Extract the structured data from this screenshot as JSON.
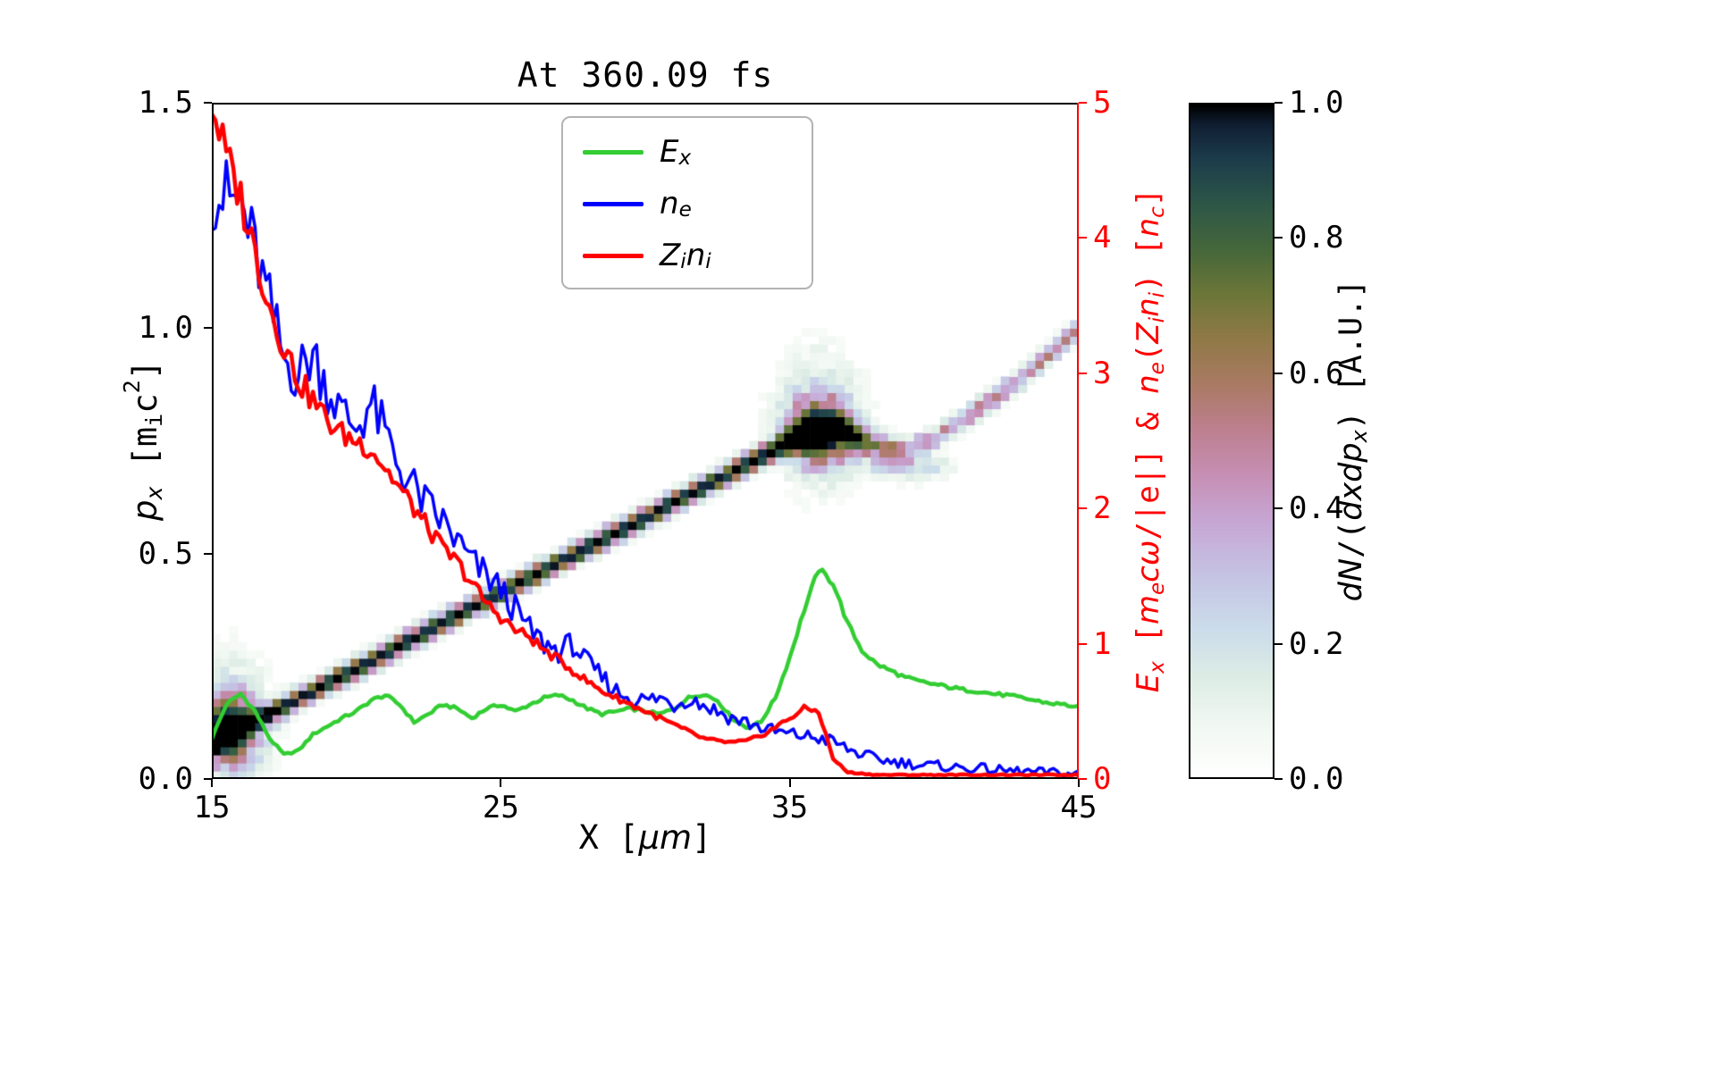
{
  "figure": {
    "title": "At 360.09 fs",
    "background": "#ffffff",
    "axes_color": "#000000",
    "right_axis_color": "#ff0000"
  },
  "labels": {
    "xlabel": [
      {
        "t": "X [",
        "s": ""
      },
      {
        "t": "μm",
        "s": "it"
      },
      {
        "t": "]",
        "s": ""
      }
    ],
    "ylabel_left": [
      {
        "t": "p",
        "s": "it"
      },
      {
        "t": "x",
        "s": "itsub"
      },
      {
        "t": " [m",
        "s": ""
      },
      {
        "t": "i",
        "s": "sub"
      },
      {
        "t": "c",
        "s": ""
      },
      {
        "t": "2",
        "s": "sup"
      },
      {
        "t": "]",
        "s": ""
      }
    ],
    "ylabel_right": [
      {
        "t": "E",
        "s": "it"
      },
      {
        "t": "x",
        "s": "itsub"
      },
      {
        "t": " [",
        "s": ""
      },
      {
        "t": "m",
        "s": "it"
      },
      {
        "t": "e",
        "s": "itsub"
      },
      {
        "t": "c",
        "s": "it"
      },
      {
        "t": "ω",
        "s": "it"
      },
      {
        "t": "/|e|] & ",
        "s": ""
      },
      {
        "t": "n",
        "s": "it"
      },
      {
        "t": "e",
        "s": "itsub"
      },
      {
        "t": "(",
        "s": ""
      },
      {
        "t": "Z",
        "s": "it"
      },
      {
        "t": "i",
        "s": "itsub"
      },
      {
        "t": "n",
        "s": "it"
      },
      {
        "t": "i",
        "s": "itsub"
      },
      {
        "t": ") [",
        "s": ""
      },
      {
        "t": "n",
        "s": "it"
      },
      {
        "t": "c",
        "s": "itsub"
      },
      {
        "t": "]",
        "s": ""
      }
    ],
    "colorbar_label": [
      {
        "t": "d",
        "s": "it"
      },
      {
        "t": "N",
        "s": "it"
      },
      {
        "t": "/(",
        "s": ""
      },
      {
        "t": "d",
        "s": "it"
      },
      {
        "t": "x",
        "s": "it"
      },
      {
        "t": "d",
        "s": "it"
      },
      {
        "t": "p",
        "s": "it"
      },
      {
        "t": "x",
        "s": "itsub"
      },
      {
        "t": ") [A.U.]",
        "s": ""
      }
    ]
  },
  "legend": {
    "entries": [
      {
        "label": [
          {
            "t": "E",
            "s": "it"
          },
          {
            "t": "x",
            "s": "itsub"
          }
        ]
      },
      {
        "label": [
          {
            "t": "n",
            "s": "it"
          },
          {
            "t": "e",
            "s": "itsub"
          }
        ]
      },
      {
        "label": [
          {
            "t": "Z",
            "s": "it"
          },
          {
            "t": "i",
            "s": "itsub"
          },
          {
            "t": "n",
            "s": "it"
          },
          {
            "t": "i",
            "s": "itsub"
          }
        ]
      }
    ]
  },
  "axes": {
    "x_ticks": {
      "values": [
        15,
        25,
        35,
        45
      ],
      "labels": [
        "15",
        "25",
        "35",
        "45"
      ],
      "range": [
        15,
        45
      ]
    },
    "y_left_ticks": {
      "values": [
        0,
        0.5,
        1,
        1.5
      ],
      "labels": [
        "0.0",
        "0.5",
        "1.0",
        "1.5"
      ],
      "range": [
        0,
        1.5
      ]
    },
    "y_right_ticks": {
      "values": [
        0,
        1,
        2,
        3,
        4,
        5
      ],
      "labels": [
        "0",
        "1",
        "2",
        "3",
        "4",
        "5"
      ],
      "range": [
        0,
        5
      ]
    }
  },
  "colorbar": {
    "ticks": {
      "values": [
        0,
        0.2,
        0.4,
        0.6,
        0.8,
        1
      ],
      "labels": [
        "0.0",
        "0.2",
        "0.4",
        "0.6",
        "0.8",
        "1.0"
      ]
    },
    "stops": [
      [
        0,
        "#ffffff"
      ],
      [
        0.08,
        "#f0f7f1"
      ],
      [
        0.15,
        "#dcece5"
      ],
      [
        0.22,
        "#cbdcea"
      ],
      [
        0.3,
        "#c5c3e3"
      ],
      [
        0.38,
        "#c6a6d4"
      ],
      [
        0.45,
        "#c68fb4"
      ],
      [
        0.52,
        "#bc7f8e"
      ],
      [
        0.58,
        "#ab7a66"
      ],
      [
        0.65,
        "#917947"
      ],
      [
        0.72,
        "#6b7638"
      ],
      [
        0.78,
        "#48683a"
      ],
      [
        0.85,
        "#2e5747"
      ],
      [
        0.92,
        "#1c3c4b"
      ],
      [
        0.97,
        "#101f33"
      ],
      [
        1,
        "#000000"
      ]
    ]
  },
  "chart_data": {
    "type": "line+heatmap",
    "title": "At 360.09 fs",
    "xlabel": "X [μm]",
    "ylabel_left": "p_x [m_i c^2]",
    "ylabel_right": "E_x [m_e c ω/|e|] & n_e(Z_i n_i) [n_c]",
    "x_range": [
      15,
      45
    ],
    "y_left_range": [
      0,
      1.5
    ],
    "y_right_range": [
      0,
      5
    ],
    "grid": false,
    "legend_position": "upper center",
    "series": [
      {
        "name": "E_x",
        "axis": "right",
        "color": "#32cd32",
        "x_start": 15,
        "x_step": 0.5,
        "noise_amp": 0.06,
        "noise_floor": 0.1,
        "line_width": 4.5,
        "values": [
          0.3,
          0.55,
          0.63,
          0.5,
          0.3,
          0.18,
          0.21,
          0.33,
          0.39,
          0.45,
          0.5,
          0.58,
          0.62,
          0.55,
          0.42,
          0.48,
          0.55,
          0.52,
          0.45,
          0.52,
          0.55,
          0.5,
          0.55,
          0.6,
          0.62,
          0.58,
          0.52,
          0.48,
          0.5,
          0.52,
          0.5,
          0.48,
          0.52,
          0.6,
          0.63,
          0.58,
          0.45,
          0.38,
          0.42,
          0.6,
          0.9,
          1.25,
          1.55,
          1.45,
          1.15,
          0.95,
          0.85,
          0.8,
          0.75,
          0.72,
          0.7,
          0.68,
          0.66,
          0.65,
          0.63,
          0.62,
          0.6,
          0.58,
          0.56,
          0.55,
          0.53
        ]
      },
      {
        "name": "n_e",
        "axis": "right",
        "color": "#0000ff",
        "x_start": 15,
        "x_step": 0.5,
        "noise_amp": 0.32,
        "noise_floor": 0.1,
        "line_width": 3.5,
        "values": [
          4.35,
          4.3,
          4.25,
          3.9,
          3.5,
          3.1,
          3.0,
          3.15,
          2.9,
          2.7,
          2.6,
          2.78,
          2.55,
          2.3,
          2.15,
          2.0,
          1.9,
          1.75,
          1.6,
          1.5,
          1.4,
          1.25,
          1.1,
          1.0,
          0.95,
          1.0,
          0.85,
          0.75,
          0.65,
          0.6,
          0.58,
          0.6,
          0.55,
          0.6,
          0.55,
          0.5,
          0.45,
          0.42,
          0.38,
          0.35,
          0.33,
          0.32,
          0.3,
          0.28,
          0.22,
          0.18,
          0.15,
          0.13,
          0.12,
          0.1,
          0.1,
          0.09,
          0.08,
          0.08,
          0.07,
          0.06,
          0.06,
          0.05,
          0.05,
          0.04,
          0.04
        ]
      },
      {
        "name": "Z_i n_i",
        "axis": "right",
        "color": "#ff0000",
        "x_start": 15,
        "x_step": 0.5,
        "noise_amp": 0.18,
        "noise_floor": 0.02,
        "line_width": 4.5,
        "values": [
          5.0,
          4.6,
          4.3,
          3.9,
          3.5,
          3.2,
          2.95,
          2.8,
          2.65,
          2.55,
          2.5,
          2.45,
          2.3,
          2.15,
          2.0,
          1.85,
          1.7,
          1.6,
          1.45,
          1.3,
          1.2,
          1.1,
          1.05,
          0.95,
          0.88,
          0.8,
          0.72,
          0.65,
          0.6,
          0.55,
          0.5,
          0.45,
          0.4,
          0.35,
          0.3,
          0.28,
          0.27,
          0.28,
          0.32,
          0.38,
          0.45,
          0.52,
          0.5,
          0.15,
          0.05,
          0.04,
          0.03,
          0.03,
          0.03,
          0.03,
          0.03,
          0.03,
          0.03,
          0.03,
          0.03,
          0.03,
          0.03,
          0.03,
          0.03,
          0.03,
          0.03
        ]
      }
    ],
    "heatmap": {
      "name": "dN/(dxdp_x)",
      "units": "A.U.",
      "x_range": [
        15,
        45
      ],
      "p_range": [
        0,
        1.5
      ],
      "nx": 100,
      "ny": 84,
      "band_points": [
        [
          15,
          0.08
        ],
        [
          20,
          0.245
        ],
        [
          25,
          0.415
        ],
        [
          30,
          0.58
        ],
        [
          34,
          0.715
        ],
        [
          35.5,
          0.765
        ],
        [
          36.8,
          0.78
        ],
        [
          37.5,
          0.75
        ],
        [
          39,
          0.735
        ],
        [
          40,
          0.755
        ],
        [
          42,
          0.84
        ],
        [
          43.5,
          0.915
        ],
        [
          45,
          1.0
        ]
      ],
      "band_sigma": 0.016,
      "intensity_points": [
        [
          15,
          1
        ],
        [
          33.5,
          1
        ],
        [
          36.8,
          1
        ],
        [
          37.4,
          0.8
        ],
        [
          37.9,
          0.55
        ],
        [
          38.6,
          0.38
        ],
        [
          39.3,
          0.32
        ],
        [
          40,
          0.42
        ],
        [
          41,
          0.47
        ],
        [
          42.5,
          0.5
        ],
        [
          43.5,
          0.46
        ],
        [
          45,
          0.42
        ]
      ],
      "blobs": [
        {
          "x": 15.5,
          "px": 0.11,
          "sx": 0.7,
          "sp": 0.05,
          "amp": 1.0
        },
        {
          "x": 15.6,
          "px": 0.14,
          "sx": 0.9,
          "sp": 0.1,
          "amp": 0.2
        },
        {
          "x": 36.05,
          "px": 0.77,
          "sx": 0.75,
          "sp": 0.045,
          "amp": 1.0
        },
        {
          "x": 36.0,
          "px": 0.8,
          "sx": 0.95,
          "sp": 0.1,
          "amp": 0.24
        },
        {
          "x": 38.3,
          "px": 0.715,
          "sx": 0.6,
          "sp": 0.025,
          "amp": 0.2
        },
        {
          "x": 39.4,
          "px": 0.695,
          "sx": 0.8,
          "sp": 0.022,
          "amp": 0.22
        }
      ],
      "speckle": 1.1
    }
  }
}
